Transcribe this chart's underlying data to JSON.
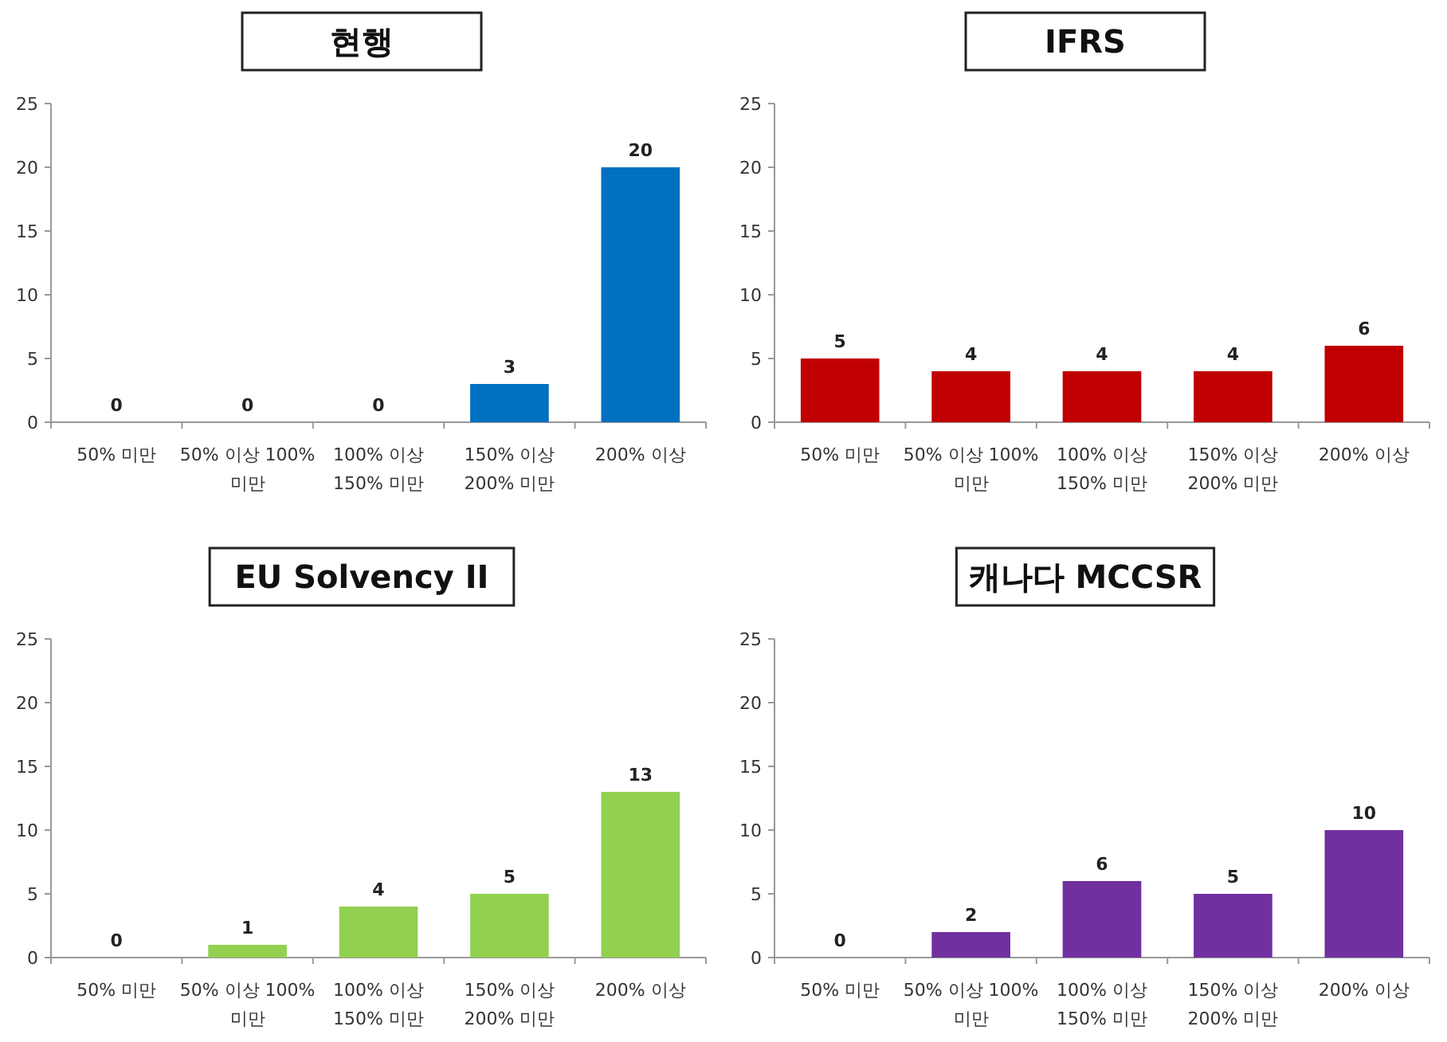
{
  "chart_data": [
    {
      "type": "bar",
      "title": "현행",
      "categories": [
        "50% 미만",
        "50% 이상 100% 미만",
        "100% 이상 150% 미만",
        "150% 이상 200% 미만",
        "200% 이상"
      ],
      "values": [
        0,
        0,
        0,
        3,
        20
      ],
      "color": "#0070c0",
      "ylim": [
        0,
        25
      ],
      "yticks": [
        0,
        5,
        10,
        15,
        20,
        25
      ],
      "data_labels": true,
      "grid": false
    },
    {
      "type": "bar",
      "title": "IFRS",
      "categories": [
        "50% 미만",
        "50% 이상 100% 미만",
        "100% 이상 150% 미만",
        "150% 이상 200% 미만",
        "200% 이상"
      ],
      "values": [
        5,
        4,
        4,
        4,
        6
      ],
      "color": "#c00000",
      "ylim": [
        0,
        25
      ],
      "yticks": [
        0,
        5,
        10,
        15,
        20,
        25
      ],
      "data_labels": true,
      "grid": false
    },
    {
      "type": "bar",
      "title": "EU Solvency II",
      "categories": [
        "50% 미만",
        "50% 이상 100% 미만",
        "100% 이상 150% 미만",
        "150% 이상 200% 미만",
        "200% 이상"
      ],
      "values": [
        0,
        1,
        4,
        5,
        13
      ],
      "color": "#92d050",
      "ylim": [
        0,
        25
      ],
      "yticks": [
        0,
        5,
        10,
        15,
        20,
        25
      ],
      "data_labels": true,
      "grid": false
    },
    {
      "type": "bar",
      "title": "캐나다 MCCSR",
      "categories": [
        "50% 미만",
        "50% 이상 100% 미만",
        "100% 이상 150% 미만",
        "150% 이상 200% 미만",
        "200% 이상"
      ],
      "values": [
        0,
        2,
        6,
        5,
        10
      ],
      "color": "#7030a0",
      "ylim": [
        0,
        25
      ],
      "yticks": [
        0,
        5,
        10,
        15,
        20,
        25
      ],
      "data_labels": true,
      "grid": false
    }
  ]
}
